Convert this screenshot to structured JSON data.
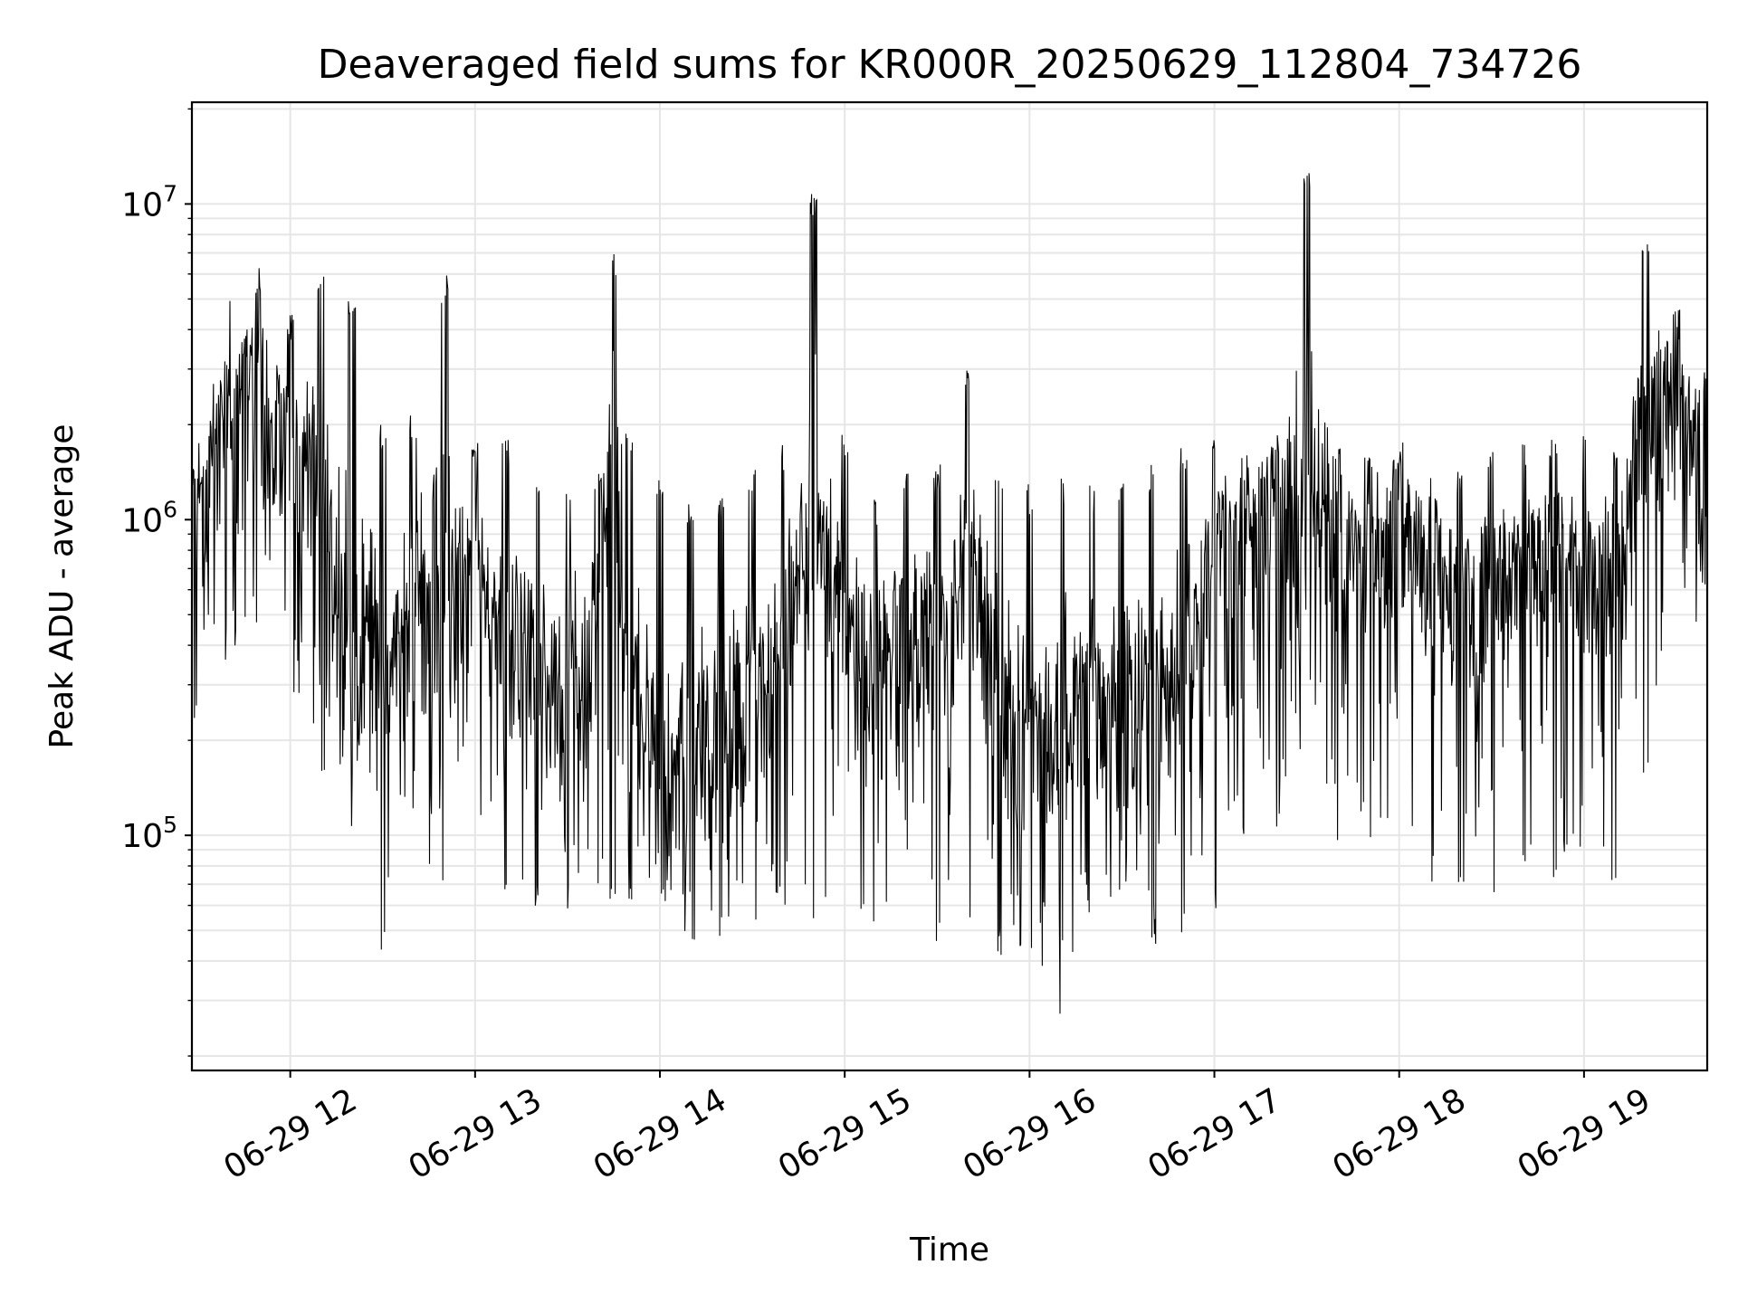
{
  "chart_data": {
    "type": "line",
    "title": "Deaveraged field sums for KR000R_20250629_112804_734726",
    "xlabel": "Time",
    "ylabel": "Peak ADU - average",
    "yscale": "log",
    "ylim": [
      18000,
      21000000
    ],
    "xlim": [
      "2025-06-29T11:28:04",
      "2025-06-29T19:40:00"
    ],
    "grid": true,
    "legend": "none",
    "line_color": "#000000",
    "grid_color": "#e6e6e6",
    "x_ticks": [
      {
        "label": "06-29 12",
        "value": "2025-06-29T12:00"
      },
      {
        "label": "06-29 13",
        "value": "2025-06-29T13:00"
      },
      {
        "label": "06-29 14",
        "value": "2025-06-29T14:00"
      },
      {
        "label": "06-29 15",
        "value": "2025-06-29T15:00"
      },
      {
        "label": "06-29 16",
        "value": "2025-06-29T16:00"
      },
      {
        "label": "06-29 17",
        "value": "2025-06-29T17:00"
      },
      {
        "label": "06-29 18",
        "value": "2025-06-29T18:00"
      },
      {
        "label": "06-29 19",
        "value": "2025-06-29T19:00"
      }
    ],
    "y_ticks": [
      {
        "mantissa": "10",
        "exponent": "5",
        "value": 100000
      },
      {
        "mantissa": "10",
        "exponent": "6",
        "value": 1000000
      },
      {
        "mantissa": "10",
        "exponent": "7",
        "value": 10000000
      }
    ],
    "series": [
      {
        "x": [
          "2025-06-29T11:28",
          "2025-06-29T11:40",
          "2025-06-29T11:50",
          "2025-06-29T12:00",
          "2025-06-29T12:10",
          "2025-06-29T12:20",
          "2025-06-29T12:30",
          "2025-06-29T12:40",
          "2025-06-29T12:50",
          "2025-06-29T13:00",
          "2025-06-29T13:10",
          "2025-06-29T13:20",
          "2025-06-29T13:30",
          "2025-06-29T13:40",
          "2025-06-29T13:45",
          "2025-06-29T13:50",
          "2025-06-29T14:00",
          "2025-06-29T14:10",
          "2025-06-29T14:20",
          "2025-06-29T14:30",
          "2025-06-29T14:40",
          "2025-06-29T14:50",
          "2025-06-29T15:00",
          "2025-06-29T15:10",
          "2025-06-29T15:20",
          "2025-06-29T15:30",
          "2025-06-29T15:40",
          "2025-06-29T15:50",
          "2025-06-29T16:00",
          "2025-06-29T16:10",
          "2025-06-29T16:20",
          "2025-06-29T16:30",
          "2025-06-29T16:40",
          "2025-06-29T16:50",
          "2025-06-29T17:00",
          "2025-06-29T17:10",
          "2025-06-29T17:20",
          "2025-06-29T17:30",
          "2025-06-29T17:40",
          "2025-06-29T17:50",
          "2025-06-29T18:00",
          "2025-06-29T18:10",
          "2025-06-29T18:20",
          "2025-06-29T18:30",
          "2025-06-29T18:40",
          "2025-06-29T18:50",
          "2025-06-29T19:00",
          "2025-06-29T19:10",
          "2025-06-29T19:20",
          "2025-06-29T19:30",
          "2025-06-29T19:40"
        ],
        "y": [
          900000,
          2000000,
          2500000,
          1400000,
          1200000,
          400000,
          300000,
          450000,
          500000,
          650000,
          400000,
          300000,
          250000,
          450000,
          2000000,
          250000,
          150000,
          120000,
          200000,
          250000,
          300000,
          1000000,
          350000,
          250000,
          400000,
          350000,
          600000,
          250000,
          180000,
          200000,
          250000,
          200000,
          300000,
          350000,
          700000,
          900000,
          1000000,
          1200000,
          800000,
          700000,
          900000,
          650000,
          500000,
          600000,
          700000,
          650000,
          700000,
          650000,
          2000000,
          2200000,
          1200000
        ],
        "peak_max": [
          1600000,
          5500000,
          6500000,
          4500000,
          6000000,
          5500000,
          2000000,
          2200000,
          6000000,
          1800000,
          1800000,
          1500000,
          1400000,
          1500000,
          7000000,
          2000000,
          1500000,
          1200000,
          1200000,
          1500000,
          1800000,
          11000000,
          2000000,
          1200000,
          1500000,
          1500000,
          3000000,
          1500000,
          1300000,
          1400000,
          1300000,
          1300000,
          1500000,
          1700000,
          1800000,
          1600000,
          1900000,
          14000000,
          1900000,
          1700000,
          1800000,
          1700000,
          1500000,
          1700000,
          1800000,
          1800000,
          1900000,
          1800000,
          8500000,
          5000000,
          3000000
        ],
        "trough_min": [
          200000,
          300000,
          400000,
          250000,
          150000,
          100000,
          40000,
          60000,
          70000,
          90000,
          60000,
          55000,
          55000,
          60000,
          60000,
          55000,
          60000,
          40000,
          45000,
          50000,
          55000,
          45000,
          50000,
          45000,
          50000,
          45000,
          45000,
          40000,
          35000,
          25000,
          50000,
          55000,
          45000,
          45000,
          55000,
          100000,
          100000,
          90000,
          80000,
          80000,
          90000,
          70000,
          65000,
          65000,
          70000,
          65000,
          65000,
          60000,
          150000,
          400000,
          350000
        ]
      }
    ]
  }
}
